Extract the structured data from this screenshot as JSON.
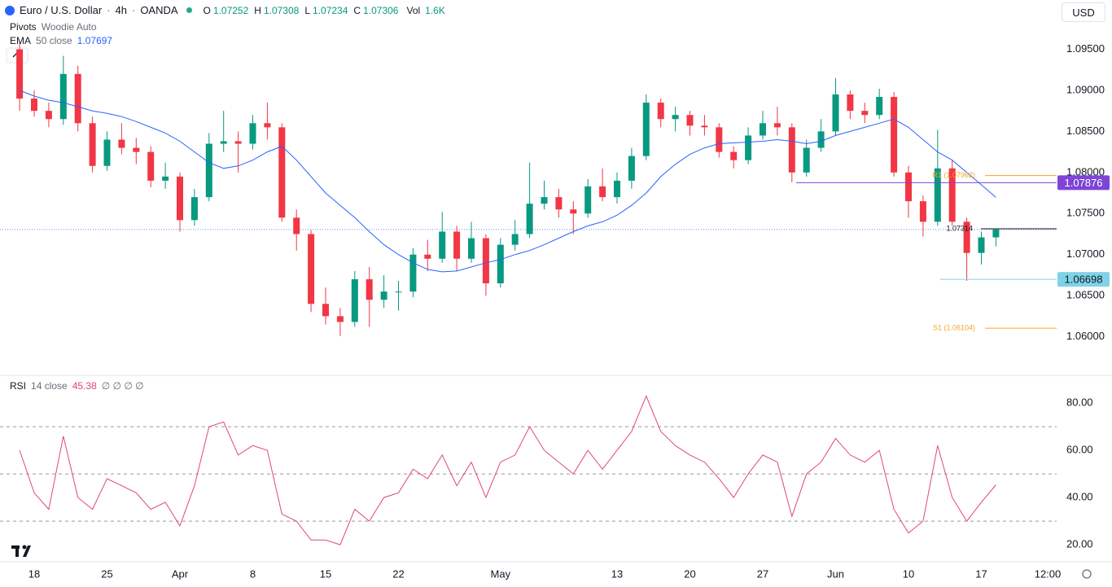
{
  "currency": "USD",
  "chart_data": [
    {
      "type": "candlestick",
      "title": "Euro / U.S. Dollar",
      "interval": "4h",
      "source": "OANDA",
      "ohlc_legend": [
        {
          "label": "O",
          "value": 1.07252
        },
        {
          "label": "H",
          "value": 1.07308
        },
        {
          "label": "L",
          "value": 1.07234
        },
        {
          "label": "C",
          "value": 1.07306
        }
      ],
      "volume": {
        "label": "Vol",
        "value": "1.6K"
      },
      "indicators": [
        {
          "name": "Pivots",
          "params": "Woodie Auto"
        }
      ],
      "categories": [
        null,
        "18",
        null,
        null,
        null,
        null,
        "25",
        null,
        null,
        null,
        null,
        "Apr",
        null,
        null,
        null,
        null,
        "8",
        null,
        null,
        null,
        null,
        "15",
        null,
        null,
        null,
        null,
        "22",
        null,
        null,
        null,
        null,
        null,
        null,
        "May",
        null,
        null,
        null,
        null,
        null,
        null,
        null,
        "13",
        null,
        null,
        null,
        null,
        "20",
        null,
        null,
        null,
        null,
        "27",
        null,
        null,
        null,
        null,
        "Jun",
        null,
        null,
        null,
        null,
        "10",
        null,
        null,
        null,
        null,
        "17",
        null
      ],
      "future_tick_label": "12:00",
      "open": [
        1.095,
        1.089,
        1.0875,
        1.0865,
        1.092,
        1.086,
        1.0808,
        1.084,
        1.083,
        1.0825,
        1.079,
        1.0795,
        1.0742,
        1.077,
        1.0835,
        1.0838,
        1.0835,
        1.086,
        1.0855,
        1.0745,
        1.0725,
        1.064,
        1.0625,
        1.0618,
        1.067,
        1.0645,
        1.0655,
        1.0655,
        1.07,
        1.0695,
        1.0728,
        1.0695,
        1.072,
        1.0665,
        1.0712,
        1.0725,
        1.0762,
        1.077,
        1.0755,
        1.075,
        1.0783,
        1.077,
        1.079,
        1.082,
        1.0885,
        1.0865,
        1.087,
        1.0857,
        1.0855,
        1.0825,
        1.0815,
        1.0845,
        1.086,
        1.0855,
        1.08,
        1.083,
        1.085,
        1.0895,
        1.0875,
        1.087,
        1.0892,
        1.08,
        1.0765,
        1.074,
        1.0805,
        1.074,
        1.0702,
        1.0721
      ],
      "high": [
        1.0958,
        1.09,
        1.0885,
        1.0942,
        1.093,
        1.0868,
        1.085,
        1.086,
        1.0842,
        1.0832,
        1.0812,
        1.08,
        1.078,
        1.0848,
        1.0875,
        1.085,
        1.087,
        1.0885,
        1.086,
        1.0755,
        1.073,
        1.066,
        1.0635,
        1.068,
        1.0685,
        1.0675,
        1.0668,
        1.0708,
        1.0718,
        1.0752,
        1.0735,
        1.074,
        1.0725,
        1.072,
        1.0742,
        1.0812,
        1.079,
        1.078,
        1.0765,
        1.0792,
        1.0805,
        1.08,
        1.083,
        1.0895,
        1.089,
        1.088,
        1.0875,
        1.087,
        1.086,
        1.0832,
        1.0855,
        1.0875,
        1.088,
        1.086,
        1.084,
        1.0865,
        1.0915,
        1.09,
        1.0885,
        1.0902,
        1.0898,
        1.0808,
        1.0772,
        1.0852,
        1.0815,
        1.0745,
        1.0728,
        1.07308
      ],
      "low": [
        1.0875,
        1.0868,
        1.0855,
        1.0858,
        1.085,
        1.08,
        1.0802,
        1.0822,
        1.081,
        1.0782,
        1.078,
        1.0728,
        1.0735,
        1.0765,
        1.0825,
        1.08,
        1.0828,
        1.084,
        1.074,
        1.0705,
        1.063,
        1.0615,
        1.0601,
        1.0612,
        1.0612,
        1.0635,
        1.0632,
        1.0648,
        1.068,
        1.069,
        1.068,
        1.069,
        1.065,
        1.066,
        1.0705,
        1.072,
        1.0755,
        1.0745,
        1.0725,
        1.0745,
        1.0765,
        1.0762,
        1.078,
        1.0815,
        1.0855,
        1.085,
        1.0845,
        1.0845,
        1.0818,
        1.0805,
        1.081,
        1.084,
        1.0845,
        1.0788,
        1.0795,
        1.0825,
        1.0845,
        1.0865,
        1.086,
        1.0865,
        1.0795,
        1.0745,
        1.0722,
        1.0735,
        1.0735,
        1.0668,
        1.0688,
        1.071
      ],
      "close": [
        1.089,
        1.0875,
        1.0865,
        1.092,
        1.086,
        1.0808,
        1.084,
        1.083,
        1.0825,
        1.079,
        1.0795,
        1.0742,
        1.077,
        1.0835,
        1.0838,
        1.0835,
        1.086,
        1.0855,
        1.0745,
        1.0725,
        1.064,
        1.0625,
        1.0618,
        1.067,
        1.0645,
        1.0655,
        1.0655,
        1.07,
        1.0695,
        1.0728,
        1.0695,
        1.072,
        1.0665,
        1.0712,
        1.0725,
        1.0762,
        1.077,
        1.0755,
        1.075,
        1.0783,
        1.077,
        1.079,
        1.082,
        1.0885,
        1.0865,
        1.087,
        1.0857,
        1.0855,
        1.0825,
        1.0815,
        1.0845,
        1.086,
        1.0855,
        1.08,
        1.083,
        1.085,
        1.0895,
        1.0875,
        1.087,
        1.0892,
        1.08,
        1.0765,
        1.074,
        1.0805,
        1.074,
        1.0702,
        1.0721,
        1.07306
      ],
      "colors": {
        "up": "#089981",
        "down": "#f23645"
      },
      "series": [
        {
          "name": "EMA",
          "params": "50 close",
          "color": "#2962ff",
          "last_value": 1.07697,
          "values": [
            1.09,
            1.0893,
            1.0888,
            1.0885,
            1.088,
            1.0875,
            1.0872,
            1.0868,
            1.0862,
            1.0855,
            1.0848,
            1.0838,
            1.0825,
            1.0812,
            1.0805,
            1.0808,
            1.0815,
            1.0825,
            1.0832,
            1.0815,
            1.0795,
            1.0775,
            1.076,
            1.0745,
            1.0728,
            1.0712,
            1.07,
            1.069,
            1.0682,
            1.0679,
            1.068,
            1.0685,
            1.069,
            1.0694,
            1.07,
            1.0705,
            1.0712,
            1.072,
            1.0728,
            1.0735,
            1.074,
            1.0748,
            1.076,
            1.0775,
            1.0795,
            1.081,
            1.0822,
            1.083,
            1.0835,
            1.0836,
            1.0837,
            1.0838,
            1.084,
            1.0838,
            1.0835,
            1.0838,
            1.0845,
            1.085,
            1.0855,
            1.086,
            1.0865,
            1.0855,
            1.084,
            1.0825,
            1.0815,
            1.08,
            1.0785,
            1.07697
          ]
        }
      ],
      "levels": [
        {
          "label": "R1 (1.07962)",
          "value": 1.07962,
          "color": "#f5a623"
        },
        {
          "label": "S1 (1.06104)",
          "value": 1.06104,
          "color": "#f5a623"
        }
      ],
      "price_lines": [
        {
          "label": "1.07876",
          "value": 1.07876,
          "color": "#7e44d6"
        },
        {
          "label": "1.06698",
          "value": 1.06698,
          "color": "#7fd3e6"
        },
        {
          "label": "1.07314",
          "value": 1.07314,
          "color": "#131722"
        }
      ],
      "ylim": [
        1.0554,
        1.101
      ],
      "yticks": [
        {
          "value": 1.06,
          "label": "1.06000"
        },
        {
          "value": 1.065,
          "label": "1.06500"
        },
        {
          "value": 1.07,
          "label": "1.07000"
        },
        {
          "value": 1.075,
          "label": "1.07500"
        },
        {
          "value": 1.08,
          "label": "1.08000"
        },
        {
          "value": 1.085,
          "label": "1.08500"
        },
        {
          "value": 1.09,
          "label": "1.09000"
        },
        {
          "value": 1.095,
          "label": "1.09500"
        }
      ]
    },
    {
      "type": "line",
      "title": "RSI",
      "params": "14 close",
      "last_value": 45.38,
      "extra": "∅ ∅ ∅ ∅",
      "series": [
        {
          "name": "RSI",
          "color": "#e0457b",
          "values": [
            60,
            42,
            35,
            66,
            40,
            35,
            48,
            45,
            42,
            35,
            38,
            28,
            45,
            70,
            72,
            58,
            62,
            60,
            33,
            30,
            22,
            22,
            20,
            35,
            30,
            40,
            42,
            52,
            48,
            58,
            45,
            55,
            40,
            55,
            58,
            70,
            60,
            55,
            50,
            60,
            52,
            60,
            68,
            83,
            68,
            62,
            58,
            55,
            48,
            40,
            50,
            58,
            55,
            32,
            50,
            55,
            65,
            58,
            55,
            60,
            35,
            25,
            30,
            62,
            40,
            30,
            38,
            45.38
          ]
        }
      ],
      "bands": [
        30,
        50,
        70
      ],
      "ylim": [
        12.8,
        91.4
      ],
      "yticks": [
        {
          "value": 20,
          "label": "20.00"
        },
        {
          "value": 40,
          "label": "40.00"
        },
        {
          "value": 60,
          "label": "60.00"
        },
        {
          "value": 80,
          "label": "80.00"
        }
      ]
    }
  ]
}
